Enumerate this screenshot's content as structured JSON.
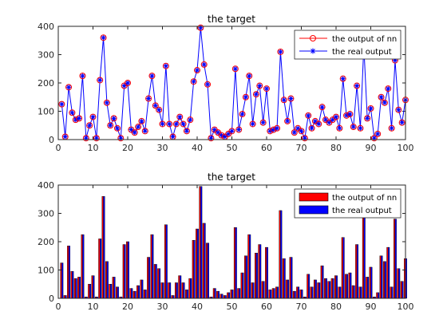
{
  "chart_data": [
    {
      "type": "line",
      "title": "the target",
      "xlabel": "",
      "ylabel": "",
      "xlim": [
        0,
        100
      ],
      "ylim": [
        0,
        400
      ],
      "xticks": [
        0,
        10,
        20,
        30,
        40,
        50,
        60,
        70,
        80,
        90,
        100
      ],
      "yticks": [
        0,
        100,
        200,
        300,
        400
      ],
      "grid": false,
      "legend_position": "top-right",
      "series": [
        {
          "name": "the output of nn",
          "marker": "circle",
          "color": "#ff0000",
          "line": false
        },
        {
          "name": "the real output",
          "marker": "asterisk",
          "color": "#0000ff",
          "line": true
        }
      ],
      "x": [
        1,
        2,
        3,
        4,
        5,
        6,
        7,
        8,
        9,
        10,
        11,
        12,
        13,
        14,
        15,
        16,
        17,
        18,
        19,
        20,
        21,
        22,
        23,
        24,
        25,
        26,
        27,
        28,
        29,
        30,
        31,
        32,
        33,
        34,
        35,
        36,
        37,
        38,
        39,
        40,
        41,
        42,
        43,
        44,
        45,
        46,
        47,
        48,
        49,
        50,
        51,
        52,
        53,
        54,
        55,
        56,
        57,
        58,
        59,
        60,
        61,
        62,
        63,
        64,
        65,
        66,
        67,
        68,
        69,
        70,
        71,
        72,
        73,
        74,
        75,
        76,
        77,
        78,
        79,
        80,
        81,
        82,
        83,
        84,
        85,
        86,
        87,
        88,
        89,
        90,
        91,
        92,
        93,
        94,
        95,
        96,
        97,
        98,
        99,
        100
      ],
      "values": [
        125,
        10,
        185,
        95,
        70,
        75,
        225,
        5,
        50,
        80,
        5,
        210,
        360,
        130,
        50,
        75,
        40,
        5,
        190,
        200,
        35,
        25,
        45,
        65,
        30,
        145,
        225,
        120,
        105,
        55,
        260,
        55,
        10,
        55,
        80,
        55,
        30,
        70,
        205,
        245,
        395,
        265,
        195,
        5,
        35,
        25,
        15,
        10,
        20,
        30,
        250,
        35,
        90,
        150,
        225,
        55,
        160,
        190,
        60,
        180,
        30,
        35,
        40,
        310,
        140,
        65,
        145,
        25,
        40,
        30,
        5,
        85,
        40,
        65,
        55,
        115,
        70,
        60,
        70,
        80,
        40,
        215,
        85,
        90,
        45,
        190,
        40,
        330,
        75,
        110,
        5,
        20,
        150,
        130,
        180,
        40,
        280,
        105,
        60,
        140
      ]
    },
    {
      "type": "bar",
      "title": "the target",
      "xlabel": "",
      "ylabel": "",
      "xlim": [
        0,
        100
      ],
      "ylim": [
        0,
        400
      ],
      "xticks": [
        0,
        10,
        20,
        30,
        40,
        50,
        60,
        70,
        80,
        90,
        100
      ],
      "yticks": [
        0,
        100,
        200,
        300,
        400
      ],
      "grid": false,
      "legend_position": "top-right",
      "series": [
        {
          "name": "the output of nn",
          "color": "#ff0000"
        },
        {
          "name": "the real output",
          "color": "#0000ff"
        }
      ]
    }
  ]
}
